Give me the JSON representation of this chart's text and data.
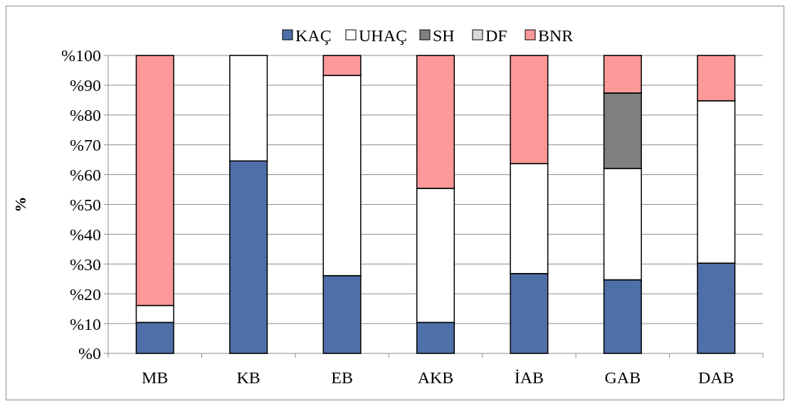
{
  "chart_data": {
    "type": "bar",
    "stacked": true,
    "ylabel": "%",
    "categories": [
      "MB",
      "KB",
      "EB",
      "AKB",
      "İAB",
      "GAB",
      "DAB"
    ],
    "series": [
      {
        "name": "KAÇ",
        "color": "#4f6fa8",
        "values": [
          10.4,
          64.6,
          26.1,
          10.4,
          26.8,
          24.7,
          30.3
        ]
      },
      {
        "name": "UHAÇ",
        "color": "#ffffff",
        "values": [
          5.7,
          35.4,
          67.2,
          45.0,
          36.9,
          37.4,
          54.5
        ]
      },
      {
        "name": "SH",
        "color": "#808080",
        "values": [
          0,
          0,
          0,
          0,
          0,
          25.3,
          0
        ]
      },
      {
        "name": "DF",
        "color": "#d9d9d9",
        "values": [
          0,
          0,
          0,
          0,
          0,
          0,
          0
        ]
      },
      {
        "name": "BNR",
        "color": "#ff9999",
        "values": [
          83.9,
          0,
          6.7,
          44.6,
          36.3,
          12.6,
          15.2
        ]
      }
    ],
    "ylim": [
      0,
      100
    ],
    "yticks": [
      {
        "value": 0,
        "label": "%0"
      },
      {
        "value": 10,
        "label": "%10"
      },
      {
        "value": 20,
        "label": "%20"
      },
      {
        "value": 30,
        "label": "%30"
      },
      {
        "value": 40,
        "label": "%40"
      },
      {
        "value": 50,
        "label": "%50"
      },
      {
        "value": 60,
        "label": "%60"
      },
      {
        "value": 70,
        "label": "%70"
      },
      {
        "value": 80,
        "label": "%80"
      },
      {
        "value": 90,
        "label": "%90"
      },
      {
        "value": 100,
        "label": "%100"
      }
    ],
    "grid": "y",
    "legend": "top"
  }
}
